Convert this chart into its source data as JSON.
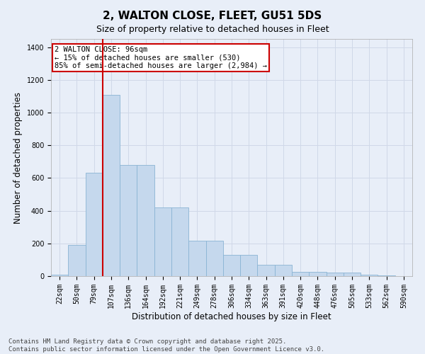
{
  "title": "2, WALTON CLOSE, FLEET, GU51 5DS",
  "subtitle": "Size of property relative to detached houses in Fleet",
  "xlabel": "Distribution of detached houses by size in Fleet",
  "ylabel": "Number of detached properties",
  "categories": [
    "22sqm",
    "50sqm",
    "79sqm",
    "107sqm",
    "136sqm",
    "164sqm",
    "192sqm",
    "221sqm",
    "249sqm",
    "278sqm",
    "306sqm",
    "334sqm",
    "363sqm",
    "391sqm",
    "420sqm",
    "448sqm",
    "476sqm",
    "505sqm",
    "533sqm",
    "562sqm",
    "590sqm"
  ],
  "values": [
    10,
    190,
    630,
    1110,
    680,
    680,
    420,
    420,
    215,
    215,
    130,
    130,
    70,
    70,
    25,
    25,
    20,
    20,
    10,
    5,
    2
  ],
  "bar_color": "#c5d8ed",
  "bar_edge_color": "#8ab4d4",
  "vline_color": "#cc0000",
  "annotation_title": "2 WALTON CLOSE: 96sqm",
  "annotation_line1": "← 15% of detached houses are smaller (530)",
  "annotation_line2": "85% of semi-detached houses are larger (2,984) →",
  "annotation_box_color": "white",
  "annotation_box_edge_color": "#cc0000",
  "ylim": [
    0,
    1450
  ],
  "yticks": [
    0,
    200,
    400,
    600,
    800,
    1000,
    1200,
    1400
  ],
  "grid_color": "#d0d8e8",
  "background_color": "#e8eef8",
  "footer_line1": "Contains HM Land Registry data © Crown copyright and database right 2025.",
  "footer_line2": "Contains public sector information licensed under the Open Government Licence v3.0.",
  "title_fontsize": 11,
  "subtitle_fontsize": 9,
  "axis_label_fontsize": 8.5,
  "tick_fontsize": 7,
  "annotation_fontsize": 7.5,
  "footer_fontsize": 6.5,
  "vline_xindex": 2.5
}
